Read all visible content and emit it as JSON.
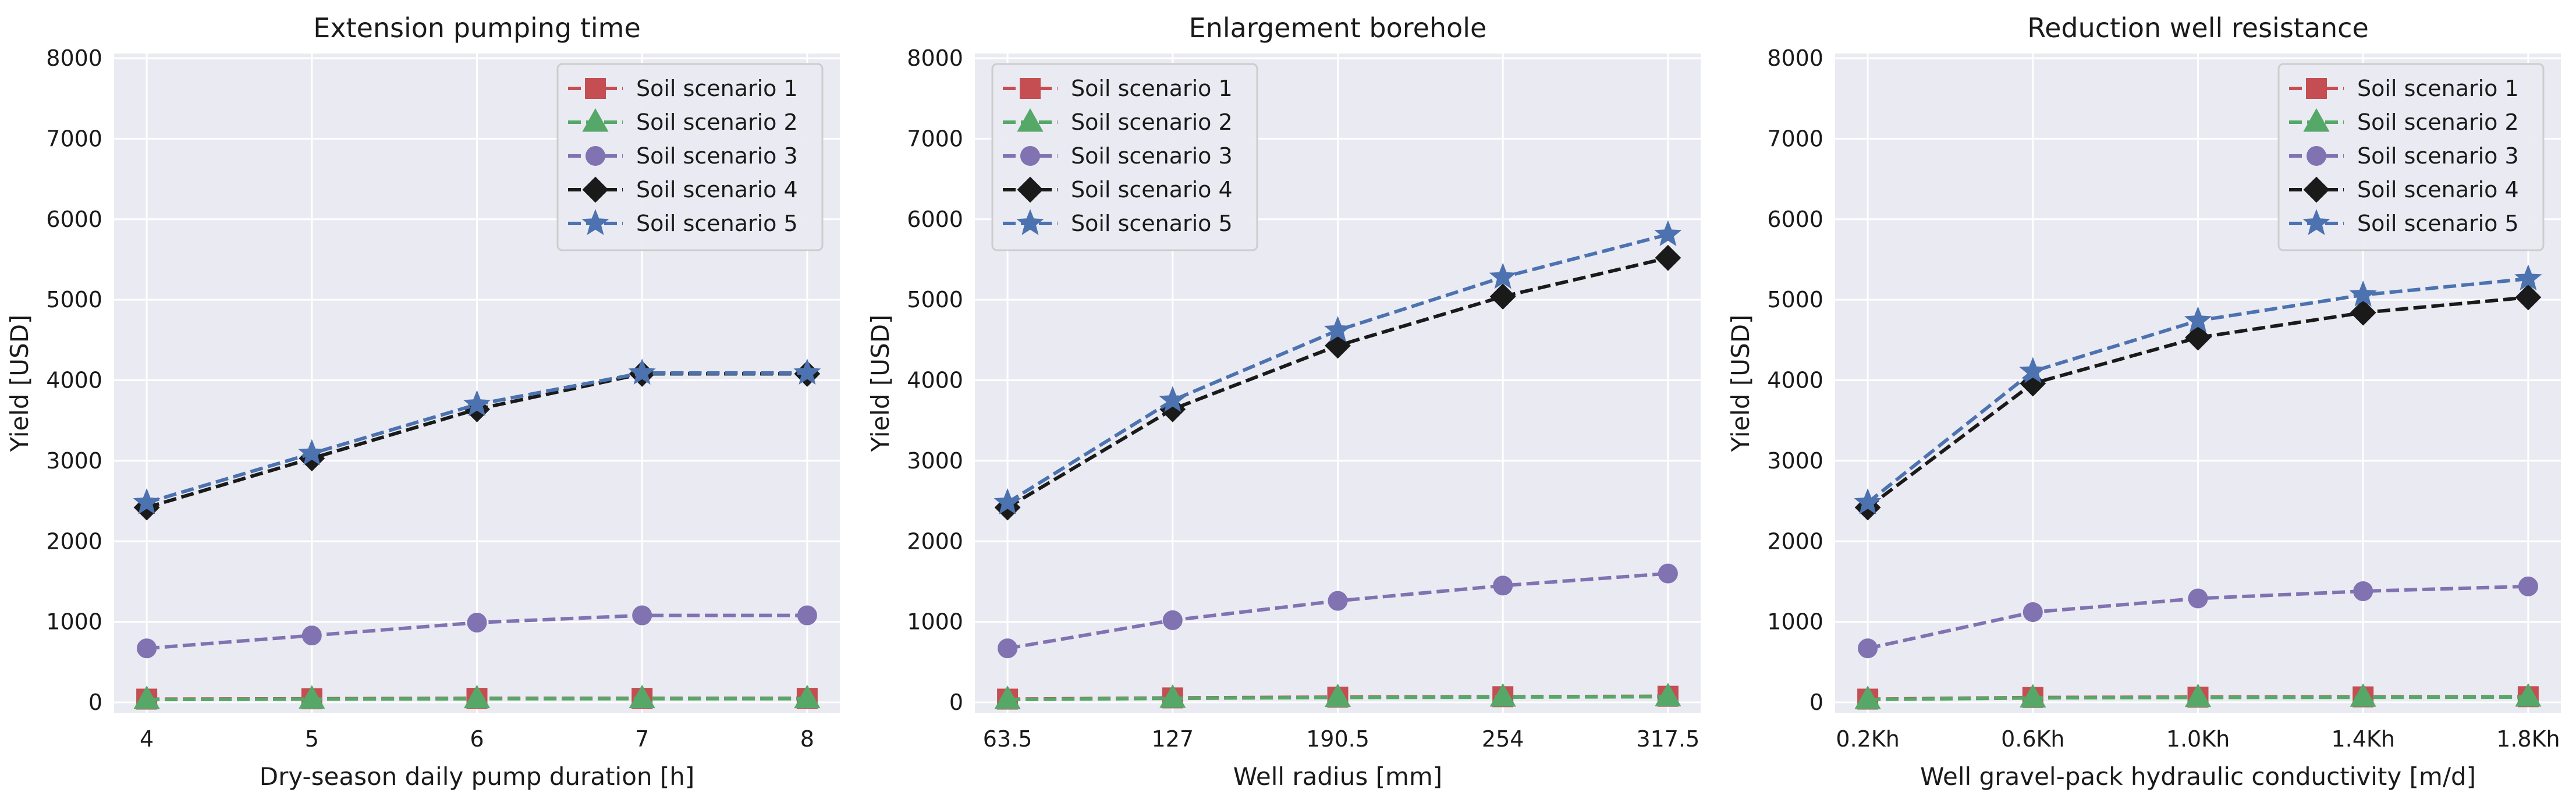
{
  "chart_data": [
    {
      "type": "line",
      "title": "Extension pumping time",
      "xlabel": "Dry-season daily pump duration [h]",
      "ylabel": "Yield [USD]",
      "categories": [
        "4",
        "5",
        "6",
        "7",
        "8"
      ],
      "ylim": [
        0,
        8000
      ],
      "yticks": [
        0,
        1000,
        2000,
        3000,
        4000,
        5000,
        6000,
        7000,
        8000
      ],
      "grid": true,
      "legend_position": "top-right",
      "series": [
        {
          "name": "Soil scenario 1",
          "values": [
            40,
            45,
            50,
            50,
            50
          ],
          "color": "#c44e52",
          "marker": "square"
        },
        {
          "name": "Soil scenario 2",
          "values": [
            35,
            40,
            45,
            45,
            45
          ],
          "color": "#55a868",
          "marker": "triangle"
        },
        {
          "name": "Soil scenario 3",
          "values": [
            670,
            830,
            990,
            1080,
            1080
          ],
          "color": "#8172b2",
          "marker": "circle"
        },
        {
          "name": "Soil scenario 4",
          "values": [
            2420,
            3030,
            3640,
            4080,
            4080
          ],
          "color": "#1a1a1a",
          "marker": "diamond"
        },
        {
          "name": "Soil scenario 5",
          "values": [
            2480,
            3090,
            3700,
            4090,
            4090
          ],
          "color": "#4c72b0",
          "marker": "star"
        }
      ]
    },
    {
      "type": "line",
      "title": "Enlargement borehole",
      "xlabel": "Well radius [mm]",
      "ylabel": "Yield [USD]",
      "categories": [
        "63.5",
        "127",
        "190.5",
        "254",
        "317.5"
      ],
      "ylim": [
        0,
        8000
      ],
      "yticks": [
        0,
        1000,
        2000,
        3000,
        4000,
        5000,
        6000,
        7000,
        8000
      ],
      "grid": true,
      "legend_position": "top-left",
      "series": [
        {
          "name": "Soil scenario 1",
          "values": [
            40,
            55,
            65,
            70,
            75
          ],
          "color": "#c44e52",
          "marker": "square"
        },
        {
          "name": "Soil scenario 2",
          "values": [
            35,
            50,
            60,
            65,
            70
          ],
          "color": "#55a868",
          "marker": "triangle"
        },
        {
          "name": "Soil scenario 3",
          "values": [
            670,
            1020,
            1260,
            1450,
            1600
          ],
          "color": "#8172b2",
          "marker": "circle"
        },
        {
          "name": "Soil scenario 4",
          "values": [
            2420,
            3640,
            4430,
            5040,
            5520
          ],
          "color": "#1a1a1a",
          "marker": "diamond"
        },
        {
          "name": "Soil scenario 5",
          "values": [
            2480,
            3750,
            4620,
            5280,
            5810
          ],
          "color": "#4c72b0",
          "marker": "star"
        }
      ]
    },
    {
      "type": "line",
      "title": "Reduction well resistance",
      "xlabel": "Well gravel-pack hydraulic conductivity [m/d]",
      "ylabel": "Yield [USD]",
      "categories": [
        "0.2Kh",
        "0.6Kh",
        "1.0Kh",
        "1.4Kh",
        "1.8Kh"
      ],
      "ylim": [
        0,
        8000
      ],
      "yticks": [
        0,
        1000,
        2000,
        3000,
        4000,
        5000,
        6000,
        7000,
        8000
      ],
      "grid": true,
      "legend_position": "top-right",
      "series": [
        {
          "name": "Soil scenario 1",
          "values": [
            40,
            60,
            65,
            68,
            70
          ],
          "color": "#c44e52",
          "marker": "square"
        },
        {
          "name": "Soil scenario 2",
          "values": [
            35,
            55,
            60,
            63,
            65
          ],
          "color": "#55a868",
          "marker": "triangle"
        },
        {
          "name": "Soil scenario 3",
          "values": [
            670,
            1120,
            1290,
            1380,
            1440
          ],
          "color": "#8172b2",
          "marker": "circle"
        },
        {
          "name": "Soil scenario 4",
          "values": [
            2420,
            3960,
            4530,
            4840,
            5030
          ],
          "color": "#1a1a1a",
          "marker": "diamond"
        },
        {
          "name": "Soil scenario 5",
          "values": [
            2480,
            4110,
            4740,
            5060,
            5260
          ],
          "color": "#4c72b0",
          "marker": "star"
        }
      ]
    }
  ]
}
